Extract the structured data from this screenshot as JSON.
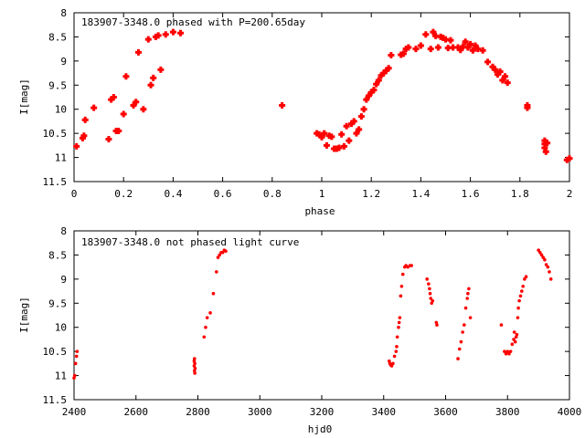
{
  "chart_data": [
    {
      "type": "scatter",
      "title": "183907-3348.0 phased with P=200.65day",
      "xlabel": "phase",
      "ylabel": "I[mag]",
      "xlim": [
        0,
        2
      ],
      "ylim": [
        11.5,
        8
      ],
      "y_inverted": true,
      "grid": false,
      "xticks": [
        "0",
        "0.2",
        "0.4",
        "0.6",
        "0.8",
        "1",
        "1.2",
        "1.4",
        "1.6",
        "1.8",
        "2"
      ],
      "yticks": [
        "8",
        "8.5",
        "9",
        "9.5",
        "10",
        "10.5",
        "11",
        "11.5"
      ],
      "color": "#ff0000",
      "series": [
        {
          "x": [
            0.01,
            0.035,
            0.04,
            0.045,
            0.08,
            0.14,
            0.15,
            0.16,
            0.17,
            0.18,
            0.2,
            0.21,
            0.24,
            0.25,
            0.26,
            0.28,
            0.3,
            0.31,
            0.32,
            0.33,
            0.34,
            0.35,
            0.37,
            0.4,
            0.43,
            0.84,
            0.98,
            0.99,
            1.0,
            1.01,
            1.02,
            1.03,
            1.04,
            1.05,
            1.06,
            1.07,
            1.08,
            1.09,
            1.1,
            1.11,
            1.12,
            1.13,
            1.14,
            1.15,
            1.16,
            1.17,
            1.18,
            1.19,
            1.2,
            1.21,
            1.22,
            1.23,
            1.24,
            1.25,
            1.26,
            1.27,
            1.28,
            1.32,
            1.33,
            1.34,
            1.35,
            1.38,
            1.4,
            1.42,
            1.44,
            1.45,
            1.46,
            1.47,
            1.48,
            1.49,
            1.5,
            1.51,
            1.52,
            1.53,
            1.55,
            1.56,
            1.57,
            1.58,
            1.59,
            1.6,
            1.61,
            1.62,
            1.63,
            1.65,
            1.67,
            1.69,
            1.7,
            1.71,
            1.72,
            1.73,
            1.74,
            1.75,
            1.83,
            1.83,
            1.9,
            1.9,
            1.9,
            1.905,
            1.91,
            1.99,
            2.0
          ],
          "y": [
            10.77,
            10.6,
            10.55,
            10.22,
            9.97,
            10.62,
            9.8,
            9.75,
            10.45,
            10.45,
            10.1,
            9.32,
            9.92,
            9.85,
            8.82,
            10.0,
            8.55,
            9.5,
            9.35,
            8.5,
            8.47,
            9.18,
            8.45,
            8.4,
            8.42,
            9.92,
            10.5,
            10.52,
            10.58,
            10.5,
            10.75,
            10.55,
            10.57,
            10.82,
            10.82,
            10.8,
            10.52,
            10.77,
            10.35,
            10.65,
            10.3,
            10.25,
            10.5,
            10.42,
            10.15,
            10.0,
            9.8,
            9.72,
            9.65,
            9.6,
            9.48,
            9.4,
            9.3,
            9.25,
            9.2,
            9.15,
            8.88,
            8.87,
            8.85,
            8.75,
            8.72,
            8.75,
            8.68,
            8.45,
            8.75,
            8.4,
            8.48,
            8.72,
            8.5,
            8.52,
            8.55,
            8.73,
            8.57,
            8.72,
            8.72,
            8.77,
            8.7,
            8.6,
            8.72,
            8.65,
            8.78,
            8.68,
            8.75,
            8.78,
            9.02,
            9.12,
            9.18,
            9.28,
            9.22,
            9.4,
            9.32,
            9.45,
            9.92,
            9.97,
            10.65,
            10.72,
            10.8,
            10.88,
            10.7,
            11.05,
            11.02
          ]
        }
      ]
    },
    {
      "type": "scatter",
      "title": "183907-3348.0 not phased light curve",
      "xlabel": "hjd0",
      "ylabel": "I[mag]",
      "xlim": [
        2400,
        4000
      ],
      "ylim": [
        11.5,
        8
      ],
      "y_inverted": true,
      "grid": false,
      "xticks": [
        "2400",
        "2600",
        "2800",
        "3000",
        "3200",
        "3400",
        "3600",
        "3800",
        "4000"
      ],
      "yticks": [
        "8",
        "8.5",
        "9",
        "9.5",
        "10",
        "10.5",
        "11",
        "11.5"
      ],
      "color": "#ff0000",
      "series": [
        {
          "x": [
            2400,
            2402,
            2405,
            2408,
            2410,
            2788,
            2788,
            2789,
            2789,
            2790,
            2790,
            2791,
            2820,
            2825,
            2830,
            2840,
            2850,
            2860,
            2865,
            2870,
            2875,
            2880,
            2885,
            2890,
            3418,
            3420,
            3423,
            3426,
            3430,
            3435,
            3440,
            3442,
            3444,
            3448,
            3450,
            3452,
            3455,
            3458,
            3462,
            3468,
            3472,
            3478,
            3485,
            3490,
            3540,
            3545,
            3548,
            3550,
            3552,
            3555,
            3558,
            3570,
            3572,
            3640,
            3645,
            3650,
            3655,
            3660,
            3665,
            3670,
            3672,
            3675,
            3680,
            3780,
            3790,
            3795,
            3800,
            3805,
            3810,
            3815,
            3820,
            3822,
            3825,
            3828,
            3830,
            3833,
            3835,
            3838,
            3842,
            3846,
            3850,
            3855,
            3860,
            3900,
            3905,
            3910,
            3915,
            3920,
            3925,
            3930,
            3935,
            3940
          ],
          "y": [
            11.05,
            11.0,
            10.75,
            10.6,
            10.5,
            10.8,
            10.7,
            10.65,
            10.9,
            10.95,
            10.75,
            10.85,
            10.2,
            10.0,
            9.8,
            9.7,
            9.3,
            8.85,
            8.55,
            8.5,
            8.45,
            8.45,
            8.4,
            8.42,
            10.7,
            10.75,
            10.78,
            10.8,
            10.75,
            10.6,
            10.5,
            10.4,
            10.2,
            10.0,
            9.9,
            9.8,
            9.35,
            9.15,
            8.9,
            8.75,
            8.72,
            8.75,
            8.72,
            8.72,
            9.0,
            9.1,
            9.2,
            9.3,
            9.4,
            9.5,
            9.45,
            9.9,
            9.95,
            10.65,
            10.45,
            10.3,
            10.1,
            9.95,
            9.6,
            9.4,
            9.3,
            9.2,
            9.8,
            9.95,
            10.5,
            10.55,
            10.5,
            10.55,
            10.5,
            10.35,
            10.25,
            10.1,
            10.3,
            10.2,
            10.15,
            9.8,
            9.6,
            9.45,
            9.35,
            9.25,
            9.15,
            9.0,
            8.95,
            8.4,
            8.45,
            8.5,
            8.55,
            8.6,
            8.7,
            8.75,
            8.85,
            9.0
          ]
        }
      ]
    }
  ]
}
